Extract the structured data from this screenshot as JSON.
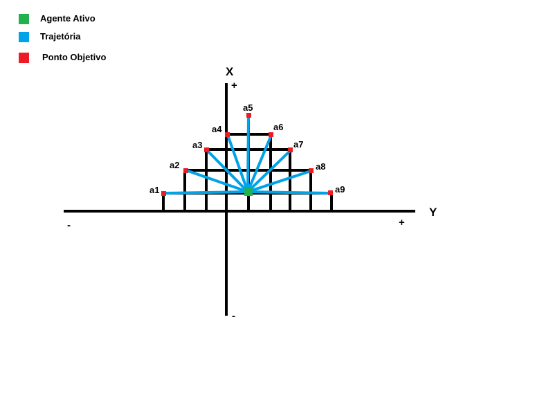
{
  "legend": [
    {
      "label": "Agente Ativo",
      "color": "#22b14c"
    },
    {
      "label": "Trajetória",
      "color": "#00a2e8"
    },
    {
      "label": "Ponto Objetivo",
      "color": "#ed1c24"
    }
  ],
  "axes": {
    "x_label": "X",
    "y_label": "Y",
    "x_plus": "+",
    "x_minus": "-",
    "y_plus": "+",
    "y_minus": "-"
  },
  "points": [
    "a1",
    "a2",
    "a3",
    "a4",
    "a5",
    "a6",
    "a7",
    "a8",
    "a9"
  ],
  "colors": {
    "axis": "#000000",
    "agent": "#22b14c",
    "trajectory": "#00a2e8",
    "target": "#ed1c24"
  }
}
